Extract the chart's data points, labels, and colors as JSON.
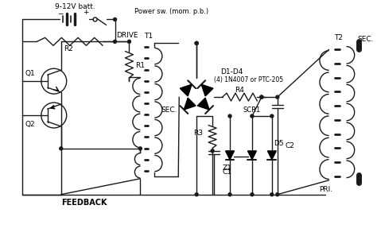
{
  "bg_color": "#ffffff",
  "line_color": "#1a1a1a",
  "figsize": [
    4.74,
    3.07
  ],
  "dpi": 100,
  "xlim": [
    0,
    474
  ],
  "ylim": [
    0,
    307
  ],
  "labels": {
    "battery": "9-12V batt.",
    "power_sw": "Power sw. (mom. p.b.)",
    "drive": "DRIVE",
    "t1": "T1",
    "sec1": "SEC.",
    "r1": "R1",
    "r2": "R2",
    "q1": "Q1",
    "q2": "Q2",
    "feedback": "FEEDBACK",
    "d1d4": "D1-D4",
    "d1d4b": "(4) 1N4007 or PTC-205",
    "r4": "R4",
    "r3": "R3",
    "c1": "C1",
    "c2": "C2",
    "z1": "Z1",
    "scr1": "SCR1",
    "d5": "D5",
    "t2": "T2",
    "sec2": "SEC.",
    "pri": "PRI."
  }
}
